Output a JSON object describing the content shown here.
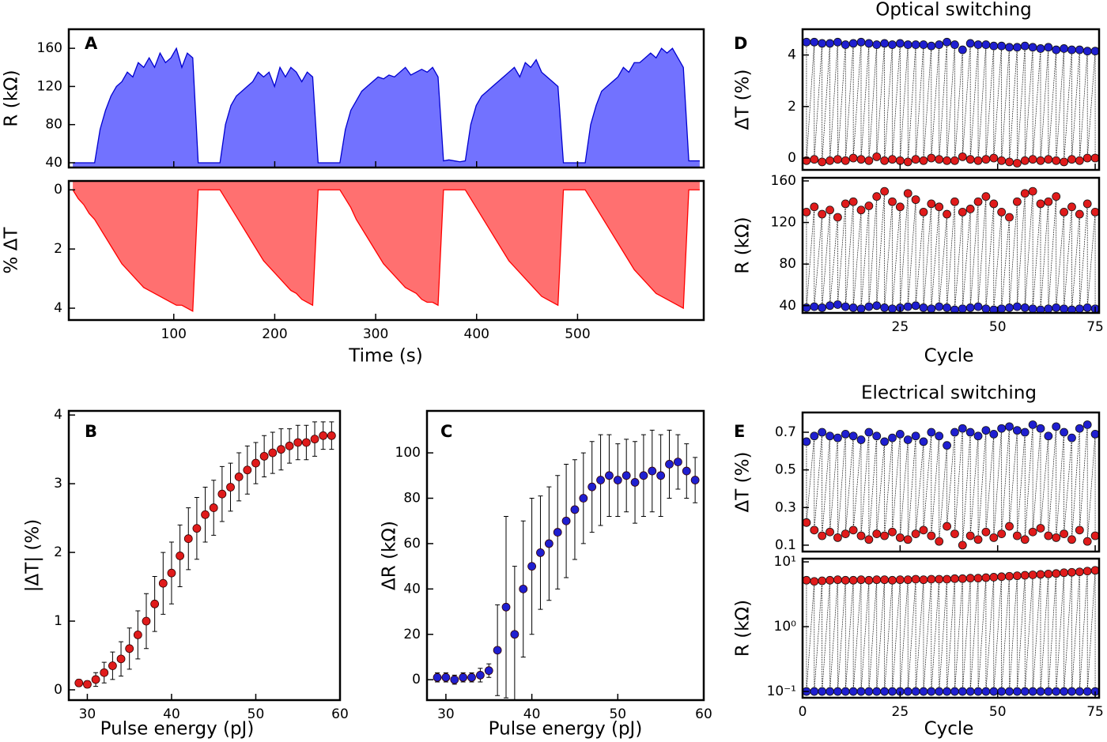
{
  "chart_data": [
    {
      "type": "area",
      "label": "A",
      "xlabel": "Time (s)",
      "x": [
        0,
        5.4,
        10.8,
        16.2,
        21.6,
        27,
        32.4,
        37.8,
        43.2,
        48.6,
        54,
        59.4,
        64.8,
        70.2,
        75.6,
        81,
        86.4,
        91.8,
        97.2,
        102.6,
        108,
        113.4,
        118.8,
        124.2,
        129.6,
        135,
        140.4,
        145.8,
        151.2,
        156.6,
        162,
        167.4,
        172.8,
        178.2,
        183.6,
        189,
        194.4,
        199.8,
        205.2,
        210.6,
        216,
        221.4,
        226.8,
        232.2,
        237.6,
        243,
        248.4,
        253.8,
        259.2,
        264.6,
        270,
        275.4,
        280.8,
        286.2,
        291.6,
        297,
        302.4,
        307.8,
        313.2,
        318.6,
        324,
        329.4,
        334.8,
        340.2,
        345.6,
        351,
        356.4,
        361.8,
        367.2,
        372.6,
        378,
        383.4,
        388.8,
        394.2,
        399.6,
        405,
        410.4,
        415.8,
        421.2,
        426.6,
        432,
        437.4,
        442.8,
        448.2,
        453.6,
        459,
        464.4,
        469.8,
        475.2,
        480.6,
        486,
        491.4,
        496.8,
        502.2,
        507.6,
        513,
        518.4,
        523.8,
        529.2,
        534.6,
        540,
        545.4,
        550.8,
        556.2,
        561.6,
        567,
        572.4,
        577.8,
        583.2,
        588.6,
        594,
        599.4,
        604.8,
        610.2,
        615.6,
        621
      ],
      "xlim": [
        -4,
        625
      ],
      "xticks": [
        100,
        200,
        300,
        400,
        500
      ],
      "panels": [
        {
          "ylabel": "R (kΩ)",
          "ylim": [
            35,
            180
          ],
          "yticks": [
            40,
            80,
            120,
            160
          ],
          "color": "#0000d0",
          "fill": "#7272ff",
          "values": [
            40,
            40,
            40,
            40,
            40,
            75,
            95,
            110,
            120,
            125,
            135,
            130,
            145,
            140,
            150,
            140,
            155,
            145,
            150,
            160,
            140,
            155,
            150,
            40,
            40,
            40,
            40,
            40,
            80,
            100,
            110,
            115,
            120,
            125,
            135,
            130,
            135,
            120,
            140,
            130,
            140,
            135,
            125,
            135,
            130,
            40,
            40,
            40,
            40,
            40,
            75,
            95,
            105,
            115,
            120,
            125,
            130,
            128,
            132,
            130,
            135,
            140,
            132,
            135,
            138,
            135,
            140,
            130,
            42,
            43,
            42,
            41,
            42,
            80,
            100,
            110,
            115,
            120,
            125,
            130,
            135,
            140,
            130,
            145,
            140,
            148,
            135,
            130,
            125,
            120,
            40,
            40,
            40,
            40,
            40,
            80,
            100,
            115,
            120,
            125,
            130,
            140,
            135,
            145,
            145,
            150,
            155,
            150,
            160,
            155,
            160,
            150,
            140,
            42,
            42,
            42
          ]
        },
        {
          "ylabel": "% ΔT",
          "ylim": [
            -0.3,
            4.4
          ],
          "yticks": [
            0,
            2,
            4
          ],
          "inverted": true,
          "color": "#ff0000",
          "fill": "#ff7070",
          "values": [
            0,
            0.3,
            0.5,
            0.8,
            1,
            1.3,
            1.6,
            1.9,
            2.2,
            2.5,
            2.7,
            2.9,
            3.1,
            3.3,
            3.4,
            3.5,
            3.6,
            3.7,
            3.8,
            3.9,
            3.9,
            4,
            4.1,
            0,
            0,
            0,
            0,
            0,
            0.3,
            0.6,
            0.9,
            1.2,
            1.5,
            1.8,
            2.1,
            2.4,
            2.6,
            2.8,
            3,
            3.2,
            3.4,
            3.5,
            3.7,
            3.8,
            3.9,
            0,
            0,
            0,
            0,
            0,
            0.3,
            0.6,
            1,
            1.3,
            1.6,
            1.9,
            2.2,
            2.5,
            2.7,
            2.9,
            3.1,
            3.3,
            3.4,
            3.5,
            3.7,
            3.8,
            3.8,
            3.9,
            0,
            0,
            0,
            0,
            0,
            0.3,
            0.6,
            0.9,
            1.2,
            1.5,
            1.8,
            2.1,
            2.4,
            2.6,
            2.8,
            3,
            3.2,
            3.4,
            3.6,
            3.7,
            3.8,
            3.9,
            0,
            0,
            0,
            0,
            0,
            0.3,
            0.6,
            0.9,
            1.2,
            1.5,
            1.8,
            2.1,
            2.4,
            2.7,
            2.9,
            3.1,
            3.3,
            3.5,
            3.6,
            3.7,
            3.8,
            3.9,
            4,
            0,
            0,
            0
          ]
        }
      ]
    },
    {
      "type": "errorbar",
      "label": "B",
      "xlabel": "Pulse energy (pJ)",
      "ylabel": "|ΔT| (%)",
      "x": [
        29,
        30,
        31,
        32,
        33,
        34,
        35,
        36,
        37,
        38,
        39,
        40,
        41,
        42,
        43,
        44,
        45,
        46,
        47,
        48,
        49,
        50,
        51,
        52,
        53,
        54,
        55,
        56,
        57,
        58,
        59
      ],
      "xlim": [
        27.8,
        60
      ],
      "xticks": [
        30,
        40,
        50,
        60
      ],
      "ylim": [
        -0.15,
        4.06
      ],
      "yticks": [
        0,
        1,
        2,
        3,
        4
      ],
      "color": "#e01b1b",
      "values": [
        0.1,
        0.08,
        0.15,
        0.25,
        0.35,
        0.45,
        0.6,
        0.8,
        1,
        1.25,
        1.55,
        1.7,
        1.95,
        2.2,
        2.35,
        2.55,
        2.65,
        2.85,
        2.95,
        3.1,
        3.2,
        3.3,
        3.4,
        3.45,
        3.5,
        3.55,
        3.6,
        3.6,
        3.65,
        3.7,
        3.7
      ],
      "errors": [
        0.05,
        0.05,
        0.1,
        0.15,
        0.2,
        0.25,
        0.3,
        0.35,
        0.4,
        0.4,
        0.45,
        0.45,
        0.45,
        0.45,
        0.45,
        0.4,
        0.4,
        0.4,
        0.35,
        0.35,
        0.35,
        0.3,
        0.3,
        0.3,
        0.3,
        0.25,
        0.25,
        0.25,
        0.25,
        0.2,
        0.2
      ]
    },
    {
      "type": "errorbar",
      "label": "C",
      "xlabel": "Pulse energy (pJ)",
      "ylabel": "ΔR (kΩ)",
      "x": [
        29,
        30,
        31,
        32,
        33,
        34,
        35,
        36,
        37,
        38,
        39,
        40,
        41,
        42,
        43,
        44,
        45,
        46,
        47,
        48,
        49,
        50,
        51,
        52,
        53,
        54,
        55,
        56,
        57,
        58,
        59
      ],
      "xlim": [
        27.8,
        60
      ],
      "xticks": [
        30,
        40,
        50,
        60
      ],
      "ylim": [
        -9,
        118.5
      ],
      "yticks": [
        0,
        20,
        40,
        60,
        80,
        100
      ],
      "color": "#1f1fd0",
      "values": [
        1,
        1,
        0,
        1,
        1,
        2,
        4,
        13,
        32,
        20,
        40,
        50,
        56,
        60,
        65,
        70,
        75,
        80,
        85,
        88,
        90,
        88,
        90,
        87,
        90,
        92,
        90,
        95,
        96,
        92,
        88
      ],
      "errors": [
        2,
        2,
        2,
        2,
        2,
        3,
        3,
        20,
        40,
        30,
        30,
        30,
        25,
        25,
        25,
        25,
        22,
        20,
        20,
        20,
        18,
        16,
        16,
        18,
        18,
        18,
        18,
        15,
        12,
        12,
        10
      ]
    },
    {
      "type": "cycle",
      "label": "D",
      "title": "Optical switching",
      "xlabel": "Cycle",
      "x": [
        1,
        3,
        5,
        7,
        9,
        11,
        13,
        15,
        17,
        19,
        21,
        23,
        25,
        27,
        29,
        31,
        33,
        35,
        37,
        39,
        41,
        43,
        45,
        47,
        49,
        51,
        53,
        55,
        57,
        59,
        61,
        63,
        65,
        67,
        69,
        71,
        73,
        75
      ],
      "xlim": [
        0,
        76
      ],
      "xticks": [
        25,
        50,
        75
      ],
      "panels": [
        {
          "ylabel": "ΔT (%)",
          "ylim": [
            -0.46,
            5
          ],
          "yticks": [
            0,
            2,
            4
          ],
          "series": [
            {
              "color": "#1f1fd0",
              "values": [
                4.5,
                4.5,
                4.45,
                4.45,
                4.5,
                4.4,
                4.45,
                4.5,
                4.45,
                4.4,
                4.45,
                4.4,
                4.45,
                4.4,
                4.4,
                4.4,
                4.35,
                4.4,
                4.5,
                4.4,
                4.2,
                4.45,
                4.4,
                4.4,
                4.35,
                4.35,
                4.3,
                4.3,
                4.35,
                4.3,
                4.25,
                4.3,
                4.2,
                4.25,
                4.2,
                4.2,
                4.15,
                4.15
              ]
            },
            {
              "color": "#e01b1b",
              "values": [
                -0.1,
                -0.05,
                -0.15,
                -0.1,
                -0.05,
                -0.1,
                0,
                -0.05,
                -0.1,
                0.05,
                -0.1,
                -0.05,
                -0.1,
                -0.15,
                -0.05,
                -0.1,
                0,
                -0.05,
                -0.1,
                -0.1,
                0.05,
                -0.05,
                -0.1,
                -0.05,
                0,
                -0.1,
                -0.15,
                -0.2,
                -0.1,
                -0.05,
                -0.1,
                -0.05,
                -0.1,
                -0.15,
                -0.05,
                -0.1,
                0,
                0
              ]
            }
          ]
        },
        {
          "ylabel": "R (kΩ)",
          "ylim": [
            33,
            163
          ],
          "yticks": [
            40,
            80,
            120,
            160
          ],
          "series": [
            {
              "color": "#e01b1b",
              "values": [
                130,
                135,
                128,
                132,
                125,
                138,
                140,
                132,
                136,
                145,
                150,
                140,
                135,
                148,
                142,
                130,
                138,
                135,
                128,
                140,
                130,
                133,
                140,
                145,
                138,
                130,
                125,
                140,
                148,
                150,
                138,
                140,
                145,
                130,
                135,
                128,
                138,
                130
              ]
            },
            {
              "color": "#1f1fd0",
              "values": [
                38,
                39,
                38,
                40,
                41,
                39,
                38,
                37,
                39,
                40,
                38,
                37,
                38,
                39,
                40,
                38,
                37,
                39,
                38,
                36,
                37,
                38,
                39,
                37,
                36,
                37,
                38,
                39,
                38,
                37,
                36,
                37,
                38,
                37,
                36,
                37,
                38,
                37
              ]
            }
          ]
        }
      ]
    },
    {
      "type": "cycle",
      "label": "E",
      "title": "Electrical switching",
      "xlabel": "Cycle",
      "x": [
        1,
        3,
        5,
        7,
        9,
        11,
        13,
        15,
        17,
        19,
        21,
        23,
        25,
        27,
        29,
        31,
        33,
        35,
        37,
        39,
        41,
        43,
        45,
        47,
        49,
        51,
        53,
        55,
        57,
        59,
        61,
        63,
        65,
        67,
        69,
        71,
        73,
        75
      ],
      "xlim": [
        0,
        76
      ],
      "xticks": [
        0,
        25,
        50,
        75
      ],
      "panels": [
        {
          "ylabel": "ΔT (%)",
          "ylim": [
            0.066,
            0.805
          ],
          "yticks": [
            0.1,
            0.3,
            0.5,
            0.7
          ],
          "series": [
            {
              "color": "#1f1fd0",
              "values": [
                0.65,
                0.68,
                0.7,
                0.68,
                0.67,
                0.69,
                0.68,
                0.66,
                0.7,
                0.68,
                0.65,
                0.67,
                0.69,
                0.66,
                0.68,
                0.65,
                0.7,
                0.68,
                0.63,
                0.7,
                0.72,
                0.7,
                0.68,
                0.71,
                0.69,
                0.72,
                0.73,
                0.71,
                0.7,
                0.74,
                0.72,
                0.68,
                0.73,
                0.7,
                0.67,
                0.72,
                0.74,
                0.69
              ]
            },
            {
              "color": "#e01b1b",
              "values": [
                0.22,
                0.18,
                0.15,
                0.17,
                0.14,
                0.16,
                0.18,
                0.15,
                0.13,
                0.16,
                0.15,
                0.17,
                0.14,
                0.13,
                0.16,
                0.18,
                0.15,
                0.12,
                0.2,
                0.16,
                0.1,
                0.15,
                0.13,
                0.17,
                0.14,
                0.16,
                0.2,
                0.15,
                0.13,
                0.17,
                0.19,
                0.15,
                0.14,
                0.16,
                0.13,
                0.18,
                0.12,
                0.15
              ]
            }
          ]
        },
        {
          "ylabel": "R (kΩ)",
          "log": true,
          "ylim": [
            0.08,
            11.2
          ],
          "yticks": [
            {
              "value": 10,
              "label": "10¹"
            },
            {
              "value": 1,
              "label": "10⁰"
            },
            {
              "value": 0.1,
              "label": "10⁻¹"
            }
          ],
          "series": [
            {
              "color": "#e01b1b",
              "values": [
                5.2,
                5,
                5.1,
                5.2,
                5.3,
                5.2,
                5.2,
                5.3,
                5.2,
                5.3,
                5.3,
                5.2,
                5.3,
                5.3,
                5.4,
                5.3,
                5.4,
                5.4,
                5.4,
                5.5,
                5.5,
                5.6,
                5.6,
                5.7,
                5.8,
                5.9,
                6,
                6.1,
                6.2,
                6.3,
                6.4,
                6.5,
                6.6,
                6.8,
                6.9,
                7,
                7.2,
                7.4
              ]
            },
            {
              "color": "#1f1fd0",
              "values": [
                0.1,
                0.1,
                0.1,
                0.1,
                0.1,
                0.1,
                0.1,
                0.1,
                0.1,
                0.1,
                0.1,
                0.1,
                0.1,
                0.1,
                0.1,
                0.1,
                0.1,
                0.1,
                0.1,
                0.1,
                0.1,
                0.1,
                0.1,
                0.1,
                0.1,
                0.1,
                0.1,
                0.1,
                0.1,
                0.1,
                0.1,
                0.1,
                0.1,
                0.1,
                0.1,
                0.1,
                0.1,
                0.1
              ]
            }
          ]
        }
      ]
    }
  ]
}
